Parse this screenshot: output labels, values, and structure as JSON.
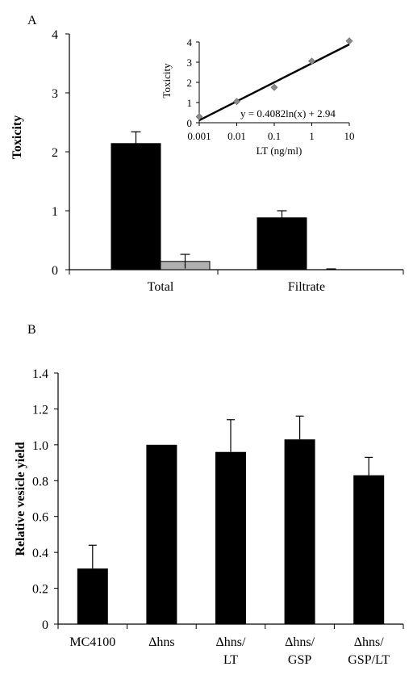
{
  "chart_data": [
    {
      "panel_label": "A",
      "type": "bar",
      "ylabel": "Toxicity",
      "xlabel": "",
      "ylim": [
        0,
        4
      ],
      "y_ticks": [
        0,
        1,
        2,
        3,
        4
      ],
      "categories": [
        "Total",
        "Filtrate"
      ],
      "series": [
        {
          "values": [
            2.14,
            0.88
          ],
          "errors": [
            0.2,
            0.12
          ],
          "color": "#000000"
        },
        {
          "values": [
            0.14,
            0.0
          ],
          "errors": [
            0.12,
            0.0
          ],
          "color": "#b0b0b0"
        }
      ],
      "legend": "none",
      "grid": false
    },
    {
      "panel_label": "",
      "type": "scatter",
      "inset_of": "A",
      "xscale": "log",
      "ylabel": "Toxicity",
      "xlabel": "LT (ng/ml)",
      "xlim": [
        0.001,
        10
      ],
      "ylim": [
        0,
        4
      ],
      "x_ticks": [
        "0.001",
        "0.01",
        "0.1",
        "1",
        "10"
      ],
      "y_ticks": [
        0,
        1,
        2,
        3,
        4
      ],
      "x": [
        0.001,
        0.01,
        0.1,
        1,
        10
      ],
      "y": [
        0.3,
        1.05,
        1.75,
        3.05,
        4.05
      ],
      "y_errors": [
        0.08,
        0.08,
        0.15,
        0.1,
        0.08
      ],
      "trendline": {
        "equation": "y = 0.4082ln(x) + 2.94",
        "slope": 0.4082,
        "intercept": 2.94
      },
      "marker_color": "#8a8a8a",
      "grid": false
    },
    {
      "panel_label": "B",
      "type": "bar",
      "ylabel": "Relative vesicle yield",
      "xlabel": "",
      "ylim": [
        0,
        1.4
      ],
      "y_ticks": [
        "0",
        "0.2",
        "0.4",
        "0.6",
        "0.8",
        "1.0",
        "1.2",
        "1.4"
      ],
      "categories": [
        [
          "MC4100"
        ],
        [
          "Δhns"
        ],
        [
          "Δhns/",
          "LT"
        ],
        [
          "Δhns/",
          "GSP"
        ],
        [
          "Δhns/",
          "GSP/LT"
        ]
      ],
      "values": [
        0.31,
        1.0,
        0.96,
        1.03,
        0.83
      ],
      "errors": [
        0.13,
        0.0,
        0.18,
        0.13,
        0.1
      ],
      "color": "#000000",
      "legend": "none",
      "grid": false
    }
  ]
}
